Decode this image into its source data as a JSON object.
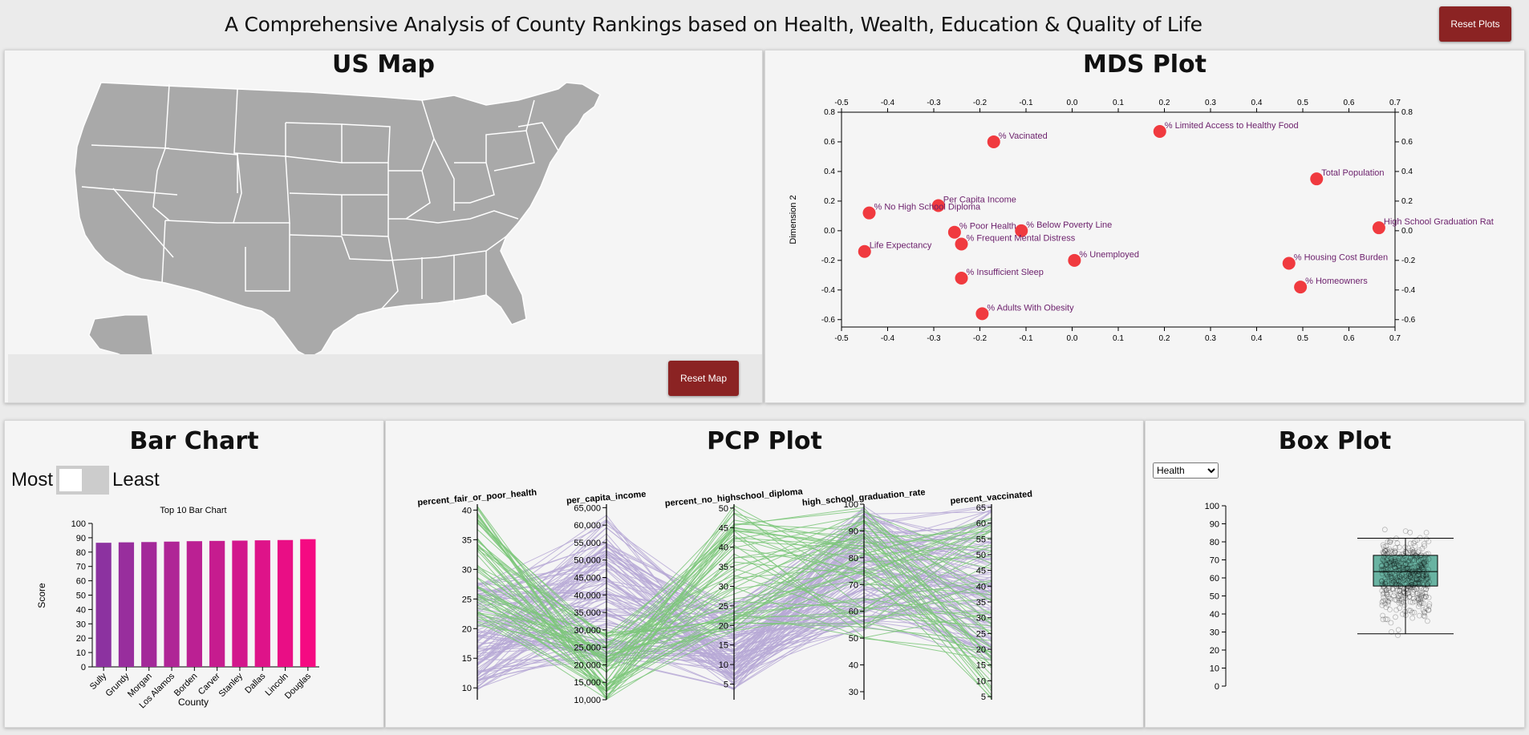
{
  "header": {
    "title": "A Comprehensive Analysis of County Rankings based on Health, Wealth, Education & Quality of Life",
    "reset_plots": "Reset Plots"
  },
  "map": {
    "title": "US Map",
    "reset_map": "Reset Map",
    "fill_color": "#a9a9a9"
  },
  "mds": {
    "title": "MDS Plot",
    "ylabel": "Dimension 2",
    "point_color": "#f03a3f",
    "label_color": "#6b1f6b",
    "xlim": [
      -0.5,
      0.7
    ],
    "ylim": [
      -0.65,
      0.8
    ],
    "xticks": [
      "-0.5",
      "-0.4",
      "-0.3",
      "-0.2",
      "-0.1",
      "0.0",
      "0.1",
      "0.2",
      "0.3",
      "0.4",
      "0.5",
      "0.6",
      "0.7"
    ],
    "yticks": [
      "0.8",
      "0.6",
      "0.4",
      "0.2",
      "0.0",
      "-0.2",
      "-0.4",
      "-0.6"
    ]
  },
  "chart_data": [
    {
      "type": "scatter",
      "title": "MDS Plot",
      "ylabel": "Dimension 2",
      "xlim": [
        -0.5,
        0.7
      ],
      "ylim": [
        -0.65,
        0.8
      ],
      "points": [
        {
          "label": "% Vacinated",
          "x": -0.17,
          "y": 0.6
        },
        {
          "label": "% Limited Access to Healthy Food",
          "x": 0.19,
          "y": 0.67
        },
        {
          "label": "Total Population",
          "x": 0.53,
          "y": 0.35
        },
        {
          "label": "Per Capita Income",
          "x": -0.29,
          "y": 0.17
        },
        {
          "label": "% No High School Diploma",
          "x": -0.44,
          "y": 0.12
        },
        {
          "label": "% Poor Health",
          "x": -0.255,
          "y": -0.01
        },
        {
          "label": "% Below Poverty Line",
          "x": -0.11,
          "y": 0.0
        },
        {
          "label": "% Frequent Mental Distress",
          "x": -0.24,
          "y": -0.09
        },
        {
          "label": "Life Expectancy",
          "x": -0.45,
          "y": -0.14
        },
        {
          "label": "High School Graduation Rat",
          "x": 0.665,
          "y": 0.02
        },
        {
          "label": "% Unemployed",
          "x": 0.005,
          "y": -0.2
        },
        {
          "label": "% Housing Cost Burden",
          "x": 0.47,
          "y": -0.22
        },
        {
          "label": "% Insufficient Sleep",
          "x": -0.24,
          "y": -0.32
        },
        {
          "label": "% Homeowners",
          "x": 0.495,
          "y": -0.38
        },
        {
          "label": "% Adults With Obesity",
          "x": -0.195,
          "y": -0.56
        }
      ]
    },
    {
      "type": "bar",
      "title": "Top 10 Bar Chart",
      "xlabel": "County",
      "ylabel": "Score",
      "ylim": [
        0,
        100
      ],
      "categories": [
        "Sully",
        "Grundy",
        "Morgan",
        "Los Alamos",
        "Borden",
        "Carver",
        "Stanley",
        "Dallas",
        "Lincoln",
        "Douglas"
      ],
      "values": [
        86.5,
        86.8,
        87.0,
        87.3,
        87.6,
        87.8,
        88.0,
        88.2,
        88.4,
        89.0
      ]
    },
    {
      "type": "line",
      "title": "PCP Plot",
      "axes": [
        {
          "name": "percent_fair_or_poor_health",
          "domain": [
            8,
            41
          ],
          "ticks": [
            "10",
            "15",
            "20",
            "25",
            "30",
            "35",
            "40"
          ],
          "tick_values": [
            10,
            15,
            20,
            25,
            30,
            35,
            40
          ]
        },
        {
          "name": "per_capita_income",
          "domain": [
            10000,
            66000
          ],
          "ticks": [
            "10,000",
            "15,000",
            "20,000",
            "25,000",
            "30,000",
            "35,000",
            "40,000",
            "45,000",
            "50,000",
            "55,000",
            "60,000",
            "65,000"
          ],
          "tick_values": [
            10000,
            15000,
            20000,
            25000,
            30000,
            35000,
            40000,
            45000,
            50000,
            55000,
            60000,
            65000
          ]
        },
        {
          "name": "percent_no_highschool_diploma",
          "domain": [
            1,
            51
          ],
          "ticks": [
            "5",
            "10",
            "15",
            "20",
            "25",
            "30",
            "35",
            "40",
            "45",
            "50"
          ],
          "tick_values": [
            5,
            10,
            15,
            20,
            25,
            30,
            35,
            40,
            45,
            50
          ]
        },
        {
          "name": "high_school_graduation_rate",
          "domain": [
            27,
            100
          ],
          "ticks": [
            "30",
            "40",
            "50",
            "60",
            "70",
            "80",
            "90",
            "100"
          ],
          "tick_values": [
            30,
            40,
            50,
            60,
            70,
            80,
            90,
            100
          ]
        },
        {
          "name": "percent_vaccinated",
          "domain": [
            4,
            66
          ],
          "ticks": [
            "5",
            "10",
            "15",
            "20",
            "25",
            "30",
            "35",
            "40",
            "45",
            "50",
            "55",
            "60",
            "65"
          ],
          "tick_values": [
            5,
            10,
            15,
            20,
            25,
            30,
            35,
            40,
            45,
            50,
            55,
            60,
            65
          ]
        }
      ],
      "colors": {
        "group_a": "#7dc77a",
        "group_b": "#b7a9d6"
      }
    },
    {
      "type": "box",
      "title": "Box Plot",
      "ylim": [
        0,
        100
      ],
      "yticks": [
        "0",
        "10",
        "20",
        "30",
        "40",
        "50",
        "60",
        "70",
        "80",
        "90",
        "100"
      ],
      "min": 29,
      "q1": 55.5,
      "median": 63.5,
      "q3": 72.5,
      "max": 82,
      "box_color": "#69b3a2"
    }
  ],
  "bar": {
    "title": "Bar Chart",
    "toggle_left": "Most",
    "toggle_right": "Least",
    "chart_title": "Top 10 Bar Chart",
    "xlabel": "County",
    "ylabel": "Score",
    "yticks": [
      "0",
      "10",
      "20",
      "30",
      "40",
      "50",
      "60",
      "70",
      "80",
      "90",
      "100"
    ]
  },
  "pcp": {
    "title": "PCP Plot"
  },
  "box": {
    "title": "Box Plot",
    "select_value": "Health",
    "options": [
      "Health"
    ]
  }
}
